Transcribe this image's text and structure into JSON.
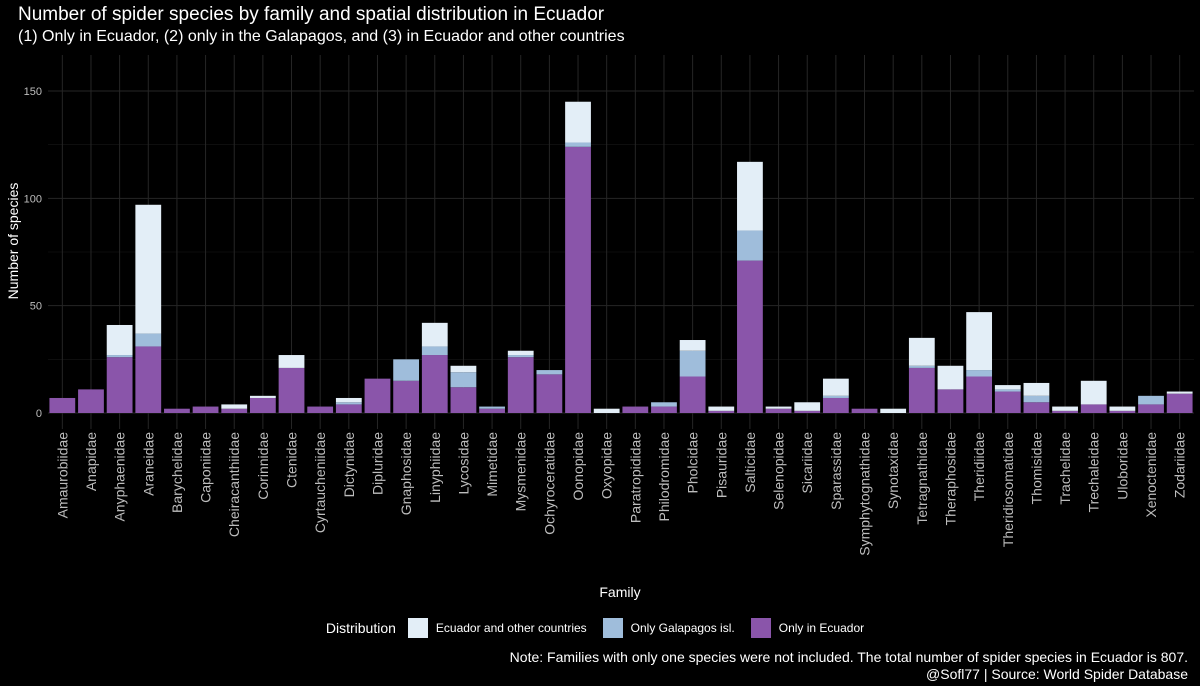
{
  "chart_data": {
    "type": "bar",
    "stacked": true,
    "title": "Number of spider species by family and spatial distribution in Ecuador",
    "subtitle": "(1) Only in Ecuador, (2) only in the Galapagos, and (3) in Ecuador and other countries",
    "xlabel": "Family",
    "ylabel": "Number of species",
    "ylim": [
      0,
      165
    ],
    "yticks": [
      0,
      50,
      100,
      150
    ],
    "grid": true,
    "legend_title": "Distribution",
    "legend_position": "bottom",
    "categories": [
      "Amaurobiidae",
      "Anapidae",
      "Anyphaenidae",
      "Araneidae",
      "Barychelidae",
      "Caponiidae",
      "Cheiracanthiidae",
      "Corinnidae",
      "Ctenidae",
      "Cyrtaucheniidae",
      "Dictynidae",
      "Dipluridae",
      "Gnaphosidae",
      "Linyphiidae",
      "Lycosidae",
      "Mimetidae",
      "Mysmenidae",
      "Ochyroceratidae",
      "Oonopidae",
      "Oxyopidae",
      "Paratropididae",
      "Philodromidae",
      "Pholcidae",
      "Pisauridae",
      "Salticidae",
      "Selenopidae",
      "Sicariidae",
      "Sparassidae",
      "Symphytognathidae",
      "Synotaxidae",
      "Tetragnathidae",
      "Theraphosidae",
      "Theridiidae",
      "Theridiosomatidae",
      "Thomisidae",
      "Trachelidae",
      "Trechaleidae",
      "Uloboridae",
      "Xenoctenidae",
      "Zodariidae"
    ],
    "series": [
      {
        "name": "Only in Ecuador",
        "color": "#8a55aa",
        "values": [
          7,
          11,
          26,
          31,
          2,
          3,
          2,
          7,
          21,
          3,
          4,
          16,
          15,
          27,
          12,
          2,
          26,
          18,
          124,
          0,
          3,
          3,
          17,
          1,
          71,
          2,
          1,
          7,
          2,
          0,
          21,
          11,
          17,
          10,
          5,
          1,
          4,
          1,
          4,
          9
        ]
      },
      {
        "name": "Only Galapagos isl.",
        "color": "#9fbddb",
        "values": [
          0,
          0,
          1,
          6,
          0,
          0,
          0,
          0,
          0,
          0,
          1,
          0,
          10,
          4,
          7,
          1,
          1,
          2,
          2,
          0,
          0,
          2,
          12,
          0,
          14,
          0,
          0,
          1,
          0,
          0,
          1,
          0,
          3,
          1,
          3,
          0,
          0,
          0,
          4,
          0
        ]
      },
      {
        "name": "Ecuador and other countries",
        "color": "#e3eef7",
        "values": [
          0,
          0,
          14,
          60,
          0,
          0,
          2,
          1,
          6,
          0,
          2,
          0,
          0,
          11,
          3,
          0,
          2,
          0,
          19,
          2,
          0,
          0,
          5,
          2,
          32,
          1,
          4,
          8,
          0,
          2,
          13,
          11,
          27,
          2,
          6,
          2,
          11,
          2,
          0,
          1
        ]
      }
    ]
  },
  "legend_order": [
    "Ecuador and other countries",
    "Only Galapagos isl.",
    "Only in Ecuador"
  ],
  "caption_line1": "Note: Families with only one species were not included. The total number of spider species in Ecuador is 807.",
  "caption_line2": "@Sofl77 | Source: World Spider Database",
  "colors": {
    "background": "#000000",
    "grid": "#262626",
    "text": "#ffffff",
    "tick_text": "#bdbdbd"
  }
}
